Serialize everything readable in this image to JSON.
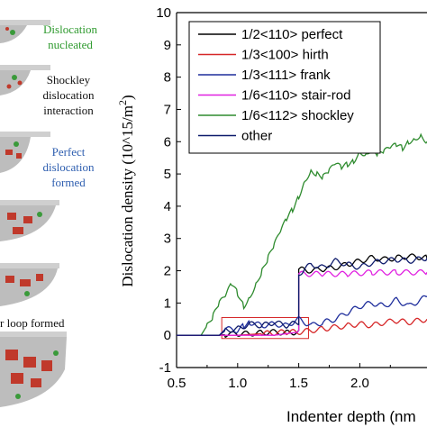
{
  "panel_captions": [
    {
      "lines": [
        "Dislocation",
        "nucleated"
      ],
      "color": "#2e9a2e"
    },
    {
      "lines": [
        "Shockley",
        "dislocation",
        "interaction"
      ],
      "color": "#111111"
    },
    {
      "lines": [
        "Perfect",
        "dislocation",
        "formed"
      ],
      "color": "#2f5fb0"
    },
    {
      "lines": [
        "r loop formed"
      ],
      "color": "#111111"
    }
  ],
  "chart_data": {
    "type": "line",
    "xlabel": "Indenter depth (nm",
    "ylabel": "Dislocation density (10^15/m",
    "ylabel_superscript": "2",
    "ylabel_close": ")",
    "xlim": [
      0.5,
      2.55
    ],
    "ylim": [
      -1,
      10
    ],
    "x_ticks": [
      "0.5",
      "1.0",
      "1.5",
      "2.0"
    ],
    "y_ticks": [
      "-1",
      "0",
      "1",
      "2",
      "3",
      "4",
      "5",
      "6",
      "7",
      "8",
      "9",
      "10"
    ],
    "legend_position": "top-left",
    "series": [
      {
        "name": "1/2<110> perfect",
        "color": "#000000",
        "x": [
          0.5,
          0.85,
          0.9,
          1.0,
          1.1,
          1.2,
          1.3,
          1.4,
          1.5,
          1.5,
          1.6,
          1.7,
          1.8,
          1.9,
          2.0,
          2.1,
          2.2,
          2.3,
          2.4,
          2.55
        ],
        "y": [
          0,
          0,
          0.02,
          0.05,
          0.05,
          0.08,
          0.1,
          0.08,
          0.1,
          2.05,
          2.0,
          2.05,
          2.1,
          2.2,
          2.3,
          2.4,
          2.35,
          2.4,
          2.45,
          2.4
        ]
      },
      {
        "name": "1/3<100> hirth",
        "color": "#d62728",
        "x": [
          0.5,
          1.0,
          1.2,
          1.4,
          1.5,
          1.6,
          1.7,
          1.8,
          1.9,
          2.0,
          2.1,
          2.2,
          2.3,
          2.4,
          2.55
        ],
        "y": [
          0,
          0,
          0.05,
          0.1,
          0.1,
          0.15,
          0.2,
          0.25,
          0.3,
          0.35,
          0.3,
          0.4,
          0.45,
          0.4,
          0.5
        ]
      },
      {
        "name": "1/3<111> frank",
        "color": "#1f2e9c",
        "x": [
          0.5,
          0.85,
          0.9,
          1.0,
          1.05,
          1.1,
          1.2,
          1.3,
          1.4,
          1.5,
          1.6,
          1.7,
          1.8,
          1.9,
          2.0,
          2.1,
          2.2,
          2.3,
          2.4,
          2.55
        ],
        "y": [
          0,
          0,
          0.2,
          0.15,
          0.3,
          0.4,
          0.3,
          0.35,
          0.3,
          0.5,
          0.3,
          0.4,
          0.5,
          0.7,
          0.9,
          1.0,
          0.9,
          1.1,
          0.9,
          1.2
        ]
      },
      {
        "name": "1/6<110> stair-rod",
        "color": "#e020e0",
        "x": [
          0.5,
          1.3,
          1.5,
          1.5,
          1.7,
          1.9,
          2.1,
          2.3,
          2.55
        ],
        "y": [
          0,
          0,
          0.1,
          1.9,
          1.9,
          1.9,
          1.95,
          1.95,
          1.95
        ]
      },
      {
        "name": "1/6<112> shockley",
        "color": "#2e8b2e",
        "x": [
          0.7,
          0.75,
          0.8,
          0.85,
          0.9,
          0.95,
          1.0,
          1.05,
          1.1,
          1.15,
          1.2,
          1.25,
          1.3,
          1.35,
          1.4,
          1.45,
          1.5,
          1.55,
          1.6,
          1.65,
          1.7,
          1.75,
          1.8,
          1.85,
          1.9,
          1.95,
          2.0,
          2.05,
          2.1,
          2.15,
          2.2,
          2.25,
          2.3,
          2.35,
          2.4,
          2.45,
          2.5,
          2.55
        ],
        "y": [
          0.0,
          0.3,
          0.6,
          1.0,
          1.2,
          1.6,
          1.3,
          0.9,
          1.2,
          1.6,
          2.0,
          2.4,
          2.8,
          3.2,
          3.6,
          3.9,
          4.3,
          4.8,
          5.1,
          5.0,
          4.9,
          5.1,
          5.3,
          5.2,
          5.3,
          5.4,
          5.7,
          5.6,
          5.8,
          5.6,
          5.7,
          5.8,
          5.9,
          5.8,
          6.0,
          6.1,
          6.2,
          6.0
        ]
      },
      {
        "name": "other",
        "color": "#0d1a6b",
        "x": [
          0.5,
          0.85,
          0.9,
          1.0,
          1.1,
          1.2,
          1.3,
          1.4,
          1.5,
          1.5,
          1.6,
          1.7,
          1.8,
          1.9,
          2.0,
          2.1,
          2.2,
          2.3,
          2.4,
          2.55
        ],
        "y": [
          0,
          0,
          0.15,
          0.2,
          0.35,
          0.3,
          0.4,
          0.3,
          0.4,
          1.9,
          2.2,
          2.1,
          2.3,
          2.2,
          2.1,
          2.25,
          2.3,
          2.35,
          2.3,
          2.4
        ]
      }
    ],
    "annotations": [
      {
        "type": "rectangle",
        "color": "#d62728",
        "x": [
          0.87,
          1.58
        ],
        "y": [
          -0.1,
          0.55
        ]
      }
    ]
  }
}
